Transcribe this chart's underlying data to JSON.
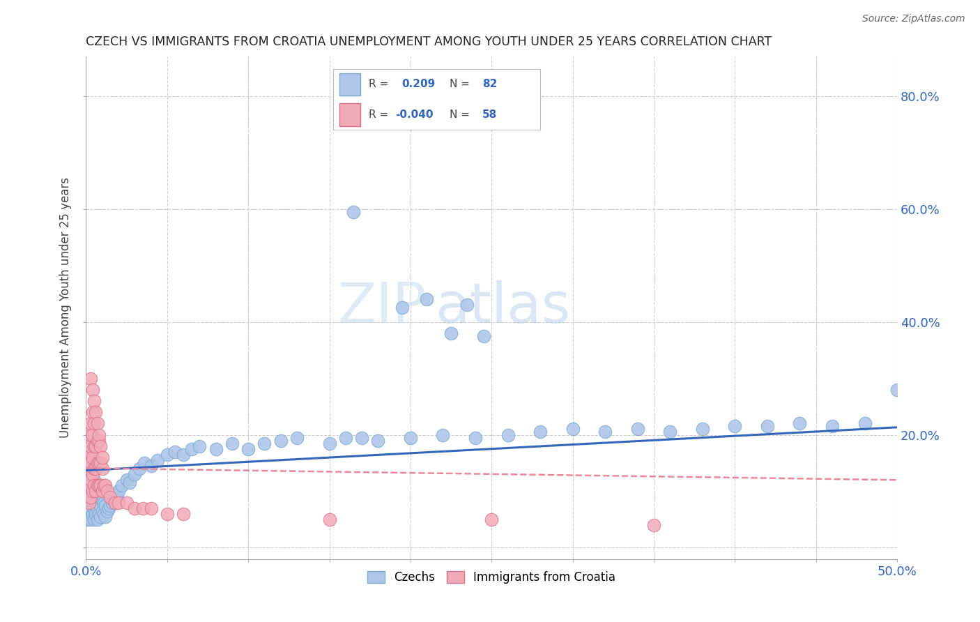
{
  "title": "CZECH VS IMMIGRANTS FROM CROATIA UNEMPLOYMENT AMONG YOUTH UNDER 25 YEARS CORRELATION CHART",
  "source": "Source: ZipAtlas.com",
  "ylabel": "Unemployment Among Youth under 25 years",
  "xlim": [
    0.0,
    0.5
  ],
  "ylim": [
    -0.02,
    0.87
  ],
  "xticks": [
    0.0,
    0.05,
    0.1,
    0.15,
    0.2,
    0.25,
    0.3,
    0.35,
    0.4,
    0.45,
    0.5
  ],
  "yticks": [
    0.0,
    0.2,
    0.4,
    0.6,
    0.8
  ],
  "czech_R": 0.209,
  "czech_N": 82,
  "croatia_R": -0.04,
  "croatia_N": 58,
  "blue_scatter_color": "#aec6e8",
  "pink_scatter_color": "#f2aab8",
  "blue_line_color": "#3366bb",
  "pink_line_color": "#e88899",
  "blue_edge_color": "#7aaad0",
  "pink_edge_color": "#d97088",
  "legend_text_color": "#3366bb",
  "watermark_color": "#dde8f5",
  "background_color": "#ffffff",
  "grid_color": "#cccccc",
  "tick_color": "#3366bb",
  "ylabel_color": "#444444",
  "title_color": "#222222",
  "source_color": "#666666",
  "czech_x": [
    0.001,
    0.002,
    0.002,
    0.003,
    0.003,
    0.003,
    0.004,
    0.004,
    0.004,
    0.005,
    0.005,
    0.005,
    0.005,
    0.006,
    0.006,
    0.006,
    0.007,
    0.007,
    0.007,
    0.008,
    0.008,
    0.009,
    0.009,
    0.01,
    0.01,
    0.011,
    0.011,
    0.012,
    0.012,
    0.013,
    0.014,
    0.015,
    0.016,
    0.017,
    0.018,
    0.019,
    0.02,
    0.022,
    0.025,
    0.027,
    0.03,
    0.033,
    0.036,
    0.04,
    0.044,
    0.05,
    0.055,
    0.06,
    0.065,
    0.07,
    0.08,
    0.09,
    0.1,
    0.11,
    0.12,
    0.13,
    0.15,
    0.16,
    0.17,
    0.18,
    0.2,
    0.22,
    0.24,
    0.26,
    0.28,
    0.3,
    0.32,
    0.34,
    0.36,
    0.38,
    0.4,
    0.42,
    0.44,
    0.46,
    0.48,
    0.5,
    0.165,
    0.245,
    0.195,
    0.21,
    0.225,
    0.235
  ],
  "czech_y": [
    0.05,
    0.06,
    0.08,
    0.05,
    0.07,
    0.09,
    0.06,
    0.08,
    0.1,
    0.05,
    0.07,
    0.09,
    0.12,
    0.06,
    0.08,
    0.1,
    0.05,
    0.07,
    0.09,
    0.06,
    0.08,
    0.055,
    0.075,
    0.065,
    0.085,
    0.06,
    0.08,
    0.055,
    0.075,
    0.065,
    0.07,
    0.075,
    0.08,
    0.085,
    0.09,
    0.095,
    0.1,
    0.11,
    0.12,
    0.115,
    0.13,
    0.14,
    0.15,
    0.145,
    0.155,
    0.165,
    0.17,
    0.165,
    0.175,
    0.18,
    0.175,
    0.185,
    0.175,
    0.185,
    0.19,
    0.195,
    0.185,
    0.195,
    0.195,
    0.19,
    0.195,
    0.2,
    0.195,
    0.2,
    0.205,
    0.21,
    0.205,
    0.21,
    0.205,
    0.21,
    0.215,
    0.215,
    0.22,
    0.215,
    0.22,
    0.28,
    0.595,
    0.375,
    0.425,
    0.44,
    0.38,
    0.43
  ],
  "croatia_x": [
    0.001,
    0.001,
    0.001,
    0.002,
    0.002,
    0.002,
    0.002,
    0.003,
    0.003,
    0.003,
    0.003,
    0.003,
    0.003,
    0.004,
    0.004,
    0.004,
    0.004,
    0.004,
    0.005,
    0.005,
    0.005,
    0.005,
    0.006,
    0.006,
    0.006,
    0.007,
    0.007,
    0.007,
    0.008,
    0.008,
    0.008,
    0.009,
    0.009,
    0.01,
    0.01,
    0.011,
    0.012,
    0.013,
    0.015,
    0.018,
    0.02,
    0.025,
    0.03,
    0.035,
    0.04,
    0.05,
    0.06,
    0.15,
    0.25,
    0.35,
    0.003,
    0.004,
    0.005,
    0.006,
    0.007,
    0.008,
    0.009,
    0.01
  ],
  "croatia_y": [
    0.1,
    0.14,
    0.16,
    0.08,
    0.11,
    0.14,
    0.17,
    0.09,
    0.12,
    0.15,
    0.18,
    0.2,
    0.22,
    0.1,
    0.13,
    0.16,
    0.2,
    0.24,
    0.11,
    0.14,
    0.18,
    0.22,
    0.1,
    0.14,
    0.18,
    0.11,
    0.15,
    0.19,
    0.11,
    0.15,
    0.19,
    0.11,
    0.15,
    0.1,
    0.14,
    0.11,
    0.11,
    0.1,
    0.09,
    0.08,
    0.08,
    0.08,
    0.07,
    0.07,
    0.07,
    0.06,
    0.06,
    0.05,
    0.05,
    0.04,
    0.3,
    0.28,
    0.26,
    0.24,
    0.22,
    0.2,
    0.18,
    0.16
  ]
}
